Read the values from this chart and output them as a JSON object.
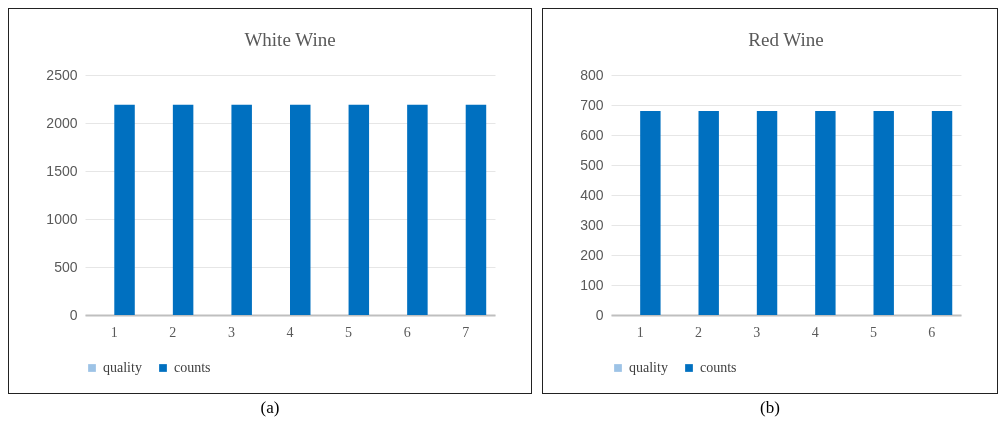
{
  "chart_data": [
    {
      "type": "bar",
      "title": "White Wine",
      "categories": [
        "1",
        "2",
        "3",
        "4",
        "5",
        "6",
        "7"
      ],
      "series": [
        {
          "name": "quality",
          "color": "#9dc3e6",
          "values": [
            null,
            null,
            null,
            null,
            null,
            null,
            null
          ]
        },
        {
          "name": "counts",
          "color": "#0070c0",
          "values": [
            2190,
            2190,
            2190,
            2190,
            2190,
            2190,
            2190
          ]
        }
      ],
      "ylim": [
        0,
        2500
      ],
      "yticks": [
        0,
        500,
        1000,
        1500,
        2000,
        2500
      ],
      "grid": "y",
      "legend": "bottom",
      "annotations": [
        "(a)"
      ]
    },
    {
      "type": "bar",
      "title": "Red Wine",
      "categories": [
        "1",
        "2",
        "3",
        "4",
        "5",
        "6"
      ],
      "series": [
        {
          "name": "quality",
          "color": "#9dc3e6",
          "values": [
            null,
            null,
            null,
            null,
            null,
            null
          ]
        },
        {
          "name": "counts",
          "color": "#0070c0",
          "values": [
            680,
            680,
            680,
            680,
            680,
            680
          ]
        }
      ],
      "ylim": [
        0,
        800
      ],
      "yticks": [
        0,
        100,
        200,
        300,
        400,
        500,
        600,
        700,
        800
      ],
      "grid": "y",
      "legend": "bottom",
      "annotations": [
        "(b)"
      ]
    }
  ]
}
